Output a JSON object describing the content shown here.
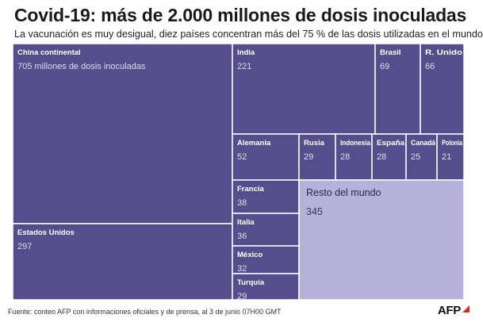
{
  "header": {
    "title": "Covid-19: más de 2.000 millones de dosis inoculadas",
    "subtitle": "La vacunación es muy desigual, diez países concentran más del 75 % de las dosis utilizadas en el mundo"
  },
  "footer": {
    "source": "Fuente: conteo AFP con informaciones oficiales y de prensa, al 3 de junio 07H00 GMT",
    "logo": "AFP"
  },
  "colors": {
    "country_fill": "#544e8c",
    "rest_fill": "#b5b1d8",
    "border": "#ffffff"
  },
  "chart_data": {
    "type": "treemap",
    "unit": "millones de dosis inoculadas",
    "items": [
      {
        "name": "China continental",
        "value": 705,
        "value_label": "705 millones de dosis inoculadas"
      },
      {
        "name": "Estados Unidos",
        "value": 297,
        "value_label": "297"
      },
      {
        "name": "India",
        "value": 221,
        "value_label": "221"
      },
      {
        "name": "Brasil",
        "value": 69,
        "value_label": "69"
      },
      {
        "name": "R. Unido",
        "value": 66,
        "value_label": "66"
      },
      {
        "name": "Alemania",
        "value": 52,
        "value_label": "52"
      },
      {
        "name": "Rusia",
        "value": 29,
        "value_label": "29"
      },
      {
        "name": "Indonesia",
        "value": 28,
        "value_label": "28"
      },
      {
        "name": "España",
        "value": 28,
        "value_label": "28"
      },
      {
        "name": "Canadá",
        "value": 25,
        "value_label": "25"
      },
      {
        "name": "Polonia",
        "value": 21,
        "value_label": "21"
      },
      {
        "name": "Francia",
        "value": 38,
        "value_label": "38"
      },
      {
        "name": "Italia",
        "value": 36,
        "value_label": "36"
      },
      {
        "name": "México",
        "value": 32,
        "value_label": "32"
      },
      {
        "name": "Turquía",
        "value": 29,
        "value_label": "29"
      },
      {
        "name": "Resto del mundo",
        "value": 345,
        "value_label": "345",
        "group": "rest"
      }
    ]
  }
}
